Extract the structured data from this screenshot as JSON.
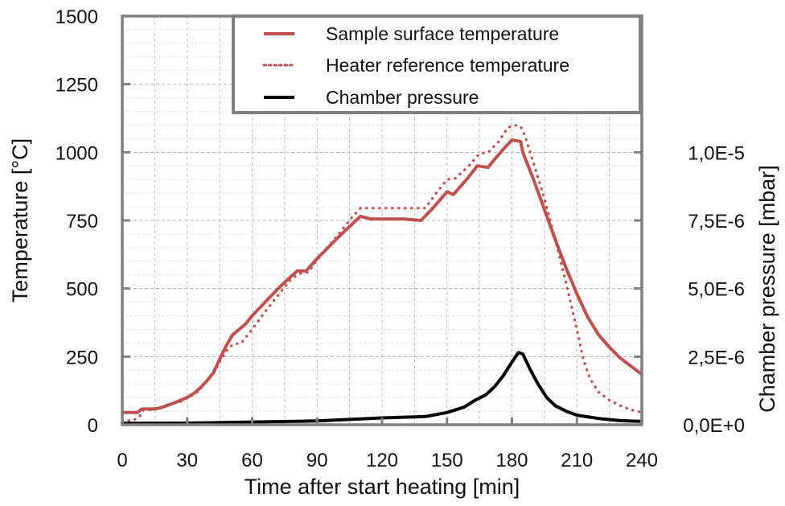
{
  "chart_data": {
    "type": "line",
    "title": "",
    "xlabel": "Time after start heating [min]",
    "ylabel": "Temperature [°C]",
    "y2label": "Chamber pressure [mbar]",
    "xlim": [
      0,
      240
    ],
    "ylim": [
      0,
      1500
    ],
    "y2lim": [
      0,
      1.5e-05
    ],
    "xticks": [
      0,
      30,
      60,
      90,
      120,
      150,
      180,
      210,
      240
    ],
    "xtick_labels": [
      "0",
      "30",
      "60",
      "90",
      "120",
      "150",
      "180",
      "210",
      "240"
    ],
    "yticks": [
      0,
      250,
      500,
      750,
      1000,
      1250,
      1500
    ],
    "ytick_labels": [
      "0",
      "250",
      "500",
      "750",
      "1000",
      "1250",
      "1500"
    ],
    "y2ticks": [
      0,
      2.5e-06,
      5e-06,
      7.5e-06,
      1e-05
    ],
    "y2tick_labels": [
      "0,0E+0",
      "2,5E-6",
      "5,0E-6",
      "7,5E-6",
      "1,0E-5"
    ],
    "grid": true,
    "legend_position": "top-right",
    "series": [
      {
        "name": "Sample surface temperature",
        "axis": "left",
        "style": "solid",
        "color": "#c0504d",
        "x": [
          0,
          7,
          9,
          15,
          18,
          21,
          24,
          27,
          30,
          33,
          36,
          39,
          42,
          45,
          48,
          51,
          54,
          57,
          60,
          66,
          72,
          78,
          81,
          85,
          90,
          100,
          110,
          115,
          120,
          130,
          138,
          144,
          150,
          153,
          159,
          164,
          169,
          171,
          177,
          180,
          184,
          185,
          190,
          195,
          200,
          205,
          210,
          215,
          220,
          225,
          230,
          235,
          240
        ],
        "y": [
          45,
          45,
          58,
          58,
          63,
          72,
          80,
          90,
          100,
          115,
          135,
          160,
          190,
          240,
          290,
          330,
          350,
          370,
          400,
          450,
          500,
          545,
          565,
          565,
          610,
          690,
          765,
          755,
          755,
          755,
          750,
          800,
          855,
          845,
          900,
          950,
          945,
          965,
          1020,
          1045,
          1040,
          1000,
          900,
          790,
          680,
          575,
          480,
          395,
          330,
          285,
          245,
          215,
          185
        ]
      },
      {
        "name": "Heater reference temperature",
        "axis": "left",
        "style": "dotted",
        "color": "#c0504d",
        "x": [
          0,
          5,
          8,
          10,
          15,
          18,
          21,
          24,
          27,
          30,
          33,
          36,
          39,
          42,
          45,
          48,
          51,
          55,
          60,
          66,
          72,
          78,
          82,
          86,
          90,
          100,
          106,
          110,
          120,
          130,
          140,
          145,
          150,
          154,
          160,
          165,
          169,
          174,
          178,
          181,
          184,
          186,
          190,
          195,
          200,
          205,
          210,
          213,
          216,
          220,
          225,
          230,
          235,
          240
        ],
        "y": [
          15,
          15,
          30,
          55,
          55,
          65,
          70,
          80,
          85,
          100,
          110,
          130,
          160,
          185,
          230,
          270,
          295,
          300,
          350,
          415,
          475,
          535,
          555,
          560,
          605,
          700,
          760,
          795,
          795,
          795,
          795,
          850,
          900,
          905,
          950,
          995,
          1000,
          1040,
          1090,
          1100,
          1095,
          1060,
          960,
          830,
          680,
          520,
          350,
          240,
          170,
          120,
          90,
          70,
          55,
          45
        ]
      },
      {
        "name": "Chamber pressure",
        "axis": "right",
        "style": "solid",
        "color": "#000000",
        "x": [
          0,
          30,
          60,
          90,
          120,
          140,
          150,
          158,
          163,
          168,
          172,
          176,
          180,
          183,
          185,
          188,
          192,
          196,
          200,
          205,
          210,
          220,
          230,
          240
        ],
        "y": [
          5e-08,
          6e-08,
          1e-07,
          1.4e-07,
          2.5e-07,
          3e-07,
          4.5e-07,
          6.5e-07,
          9e-07,
          1.1e-06,
          1.4e-06,
          1.8e-06,
          2.3e-06,
          2.65e-06,
          2.6e-06,
          2.1e-06,
          1.5e-06,
          1e-06,
          7e-07,
          5e-07,
          3.5e-07,
          2.3e-07,
          1.5e-07,
          1.2e-07
        ]
      }
    ]
  },
  "colors": {
    "temperature": "#c0504d",
    "pressure": "#000000",
    "axis": "#808080",
    "grid": "#bfbfbf"
  }
}
